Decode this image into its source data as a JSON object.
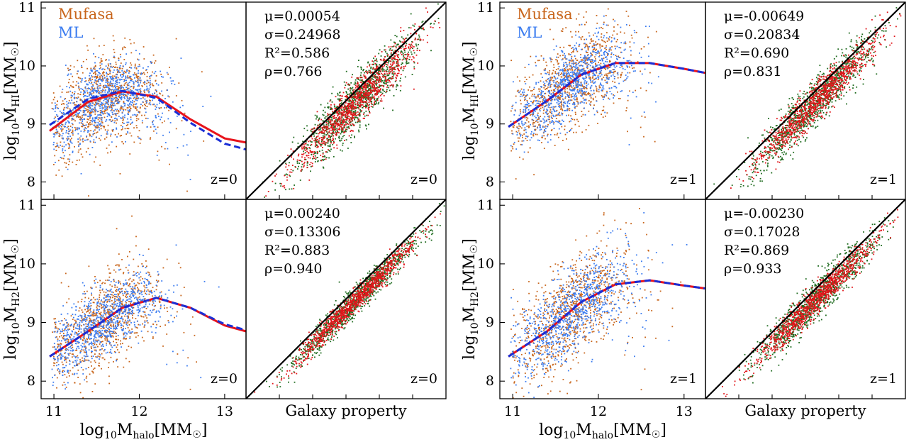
{
  "figure": {
    "legend": {
      "mufasa": "Mufasa",
      "ml": "ML"
    },
    "colors": {
      "mufasa": "#c8651b",
      "ml": "#3b7cf0",
      "green": "#1f6b1f",
      "red": "#e0161a",
      "fit_red": "#e8131b",
      "fit_blue": "#1a2fd6"
    },
    "xlabel_prefix": "log",
    "xlabel_sub10": "10",
    "xlabel_M": "M",
    "xlabel_sub": "halo",
    "xlabel_unit": "[M",
    "xlabel_sun": "☉",
    "xlabel_close": "]",
    "ylabel_HI_sub": "HI",
    "ylabel_H2_sub": "H2",
    "galaxy_property_label": "Galaxy property"
  },
  "chart_data": [
    {
      "type": "scatter",
      "panel": "top-left",
      "ylabel": "log10MHI[M☉]",
      "xlabel": "",
      "xlim": [
        10.85,
        13.25
      ],
      "ylim": [
        7.7,
        11.1
      ],
      "xticks": [
        11,
        12,
        13
      ],
      "yticks": [
        8,
        9,
        10,
        11
      ],
      "annotation": "z=0",
      "series": [
        {
          "name": "Mufasa",
          "center": [
            11.6,
            9.35
          ],
          "spread": [
            0.35,
            0.4
          ]
        },
        {
          "name": "ML",
          "center": [
            11.6,
            9.4
          ],
          "spread": [
            0.35,
            0.3
          ]
        }
      ],
      "fit_curves": {
        "x": [
          10.95,
          11.4,
          11.8,
          12.2,
          12.6,
          13.0,
          13.25
        ],
        "red": [
          8.88,
          9.38,
          9.56,
          9.47,
          9.08,
          8.75,
          8.68
        ],
        "blue": [
          8.98,
          9.43,
          9.57,
          9.45,
          9.02,
          8.66,
          8.56
        ]
      }
    },
    {
      "type": "scatter",
      "panel": "top-right-of-left",
      "annotation": "z=0",
      "stats": {
        "mu": "μ=0.00054",
        "sigma": "σ=0.24968",
        "r2": "R²=0.586",
        "rho": "ρ=0.766"
      },
      "diagonal": true
    },
    {
      "type": "scatter",
      "panel": "bottom-left",
      "ylabel": "log10MH2[M☉]",
      "xlabel": "log10Mhalo[M☉]",
      "xlim": [
        10.85,
        13.25
      ],
      "ylim": [
        7.7,
        11.1
      ],
      "xticks": [
        11,
        12,
        13
      ],
      "yticks": [
        8,
        9,
        10,
        11
      ],
      "annotation": "z=0",
      "series": [
        {
          "name": "Mufasa",
          "center": [
            11.6,
            9.0
          ],
          "spread": [
            0.35,
            0.4
          ]
        },
        {
          "name": "ML",
          "center": [
            11.6,
            9.05
          ],
          "spread": [
            0.35,
            0.3
          ]
        }
      ],
      "fit_curves": {
        "x": [
          10.95,
          11.4,
          11.8,
          12.2,
          12.6,
          13.0,
          13.25
        ],
        "red": [
          8.42,
          8.85,
          9.25,
          9.42,
          9.25,
          8.95,
          8.85
        ],
        "blue": [
          8.42,
          8.85,
          9.25,
          9.42,
          9.25,
          8.97,
          8.87
        ]
      }
    },
    {
      "type": "scatter",
      "panel": "bottom-right-of-left",
      "annotation": "z=0",
      "xlabel": "Galaxy property",
      "stats": {
        "mu": "μ=0.00240",
        "sigma": "σ=0.13306",
        "r2": "R²=0.883",
        "rho": "ρ=0.940"
      },
      "diagonal": true
    },
    {
      "type": "scatter",
      "panel": "top-left-of-right",
      "ylabel": "log10MHI[M☉]",
      "xlim": [
        10.85,
        13.25
      ],
      "ylim": [
        7.7,
        11.1
      ],
      "xticks": [
        11,
        12,
        13
      ],
      "yticks": [
        8,
        9,
        10,
        11
      ],
      "annotation": "z=1",
      "series": [
        {
          "name": "Mufasa",
          "center": [
            11.7,
            9.7
          ],
          "spread": [
            0.35,
            0.4
          ]
        },
        {
          "name": "ML",
          "center": [
            11.7,
            9.75
          ],
          "spread": [
            0.35,
            0.3
          ]
        }
      ],
      "fit_curves": {
        "x": [
          10.95,
          11.4,
          11.8,
          12.2,
          12.6,
          13.0,
          13.25
        ],
        "red": [
          8.95,
          9.4,
          9.85,
          10.05,
          10.05,
          9.95,
          9.88
        ],
        "blue": [
          8.95,
          9.4,
          9.85,
          10.05,
          10.05,
          9.95,
          9.88
        ]
      }
    },
    {
      "type": "scatter",
      "panel": "top-right",
      "annotation": "z=1",
      "stats": {
        "mu": "μ=-0.00649",
        "sigma": "σ=0.20834",
        "r2": "R²=0.690",
        "rho": "ρ=0.831"
      },
      "diagonal": true
    },
    {
      "type": "scatter",
      "panel": "bottom-left-of-right",
      "ylabel": "log10MH2[M☉]",
      "xlabel": "log10Mhalo[M☉]",
      "xlim": [
        10.85,
        13.25
      ],
      "ylim": [
        7.7,
        11.1
      ],
      "xticks": [
        11,
        12,
        13
      ],
      "yticks": [
        8,
        9,
        10,
        11
      ],
      "annotation": "z=1",
      "series": [
        {
          "name": "Mufasa",
          "center": [
            11.7,
            9.3
          ],
          "spread": [
            0.35,
            0.45
          ]
        },
        {
          "name": "ML",
          "center": [
            11.7,
            9.3
          ],
          "spread": [
            0.35,
            0.35
          ]
        }
      ],
      "fit_curves": {
        "x": [
          10.95,
          11.4,
          11.8,
          12.2,
          12.6,
          13.0,
          13.25
        ],
        "red": [
          8.42,
          8.85,
          9.35,
          9.65,
          9.72,
          9.63,
          9.58
        ],
        "blue": [
          8.42,
          8.85,
          9.35,
          9.65,
          9.72,
          9.63,
          9.58
        ]
      }
    },
    {
      "type": "scatter",
      "panel": "bottom-right",
      "annotation": "z=1",
      "xlabel": "Galaxy property",
      "stats": {
        "mu": "μ=-0.00230",
        "sigma": "σ=0.17028",
        "r2": "R²=0.869",
        "rho": "ρ=0.933"
      },
      "diagonal": true
    }
  ]
}
